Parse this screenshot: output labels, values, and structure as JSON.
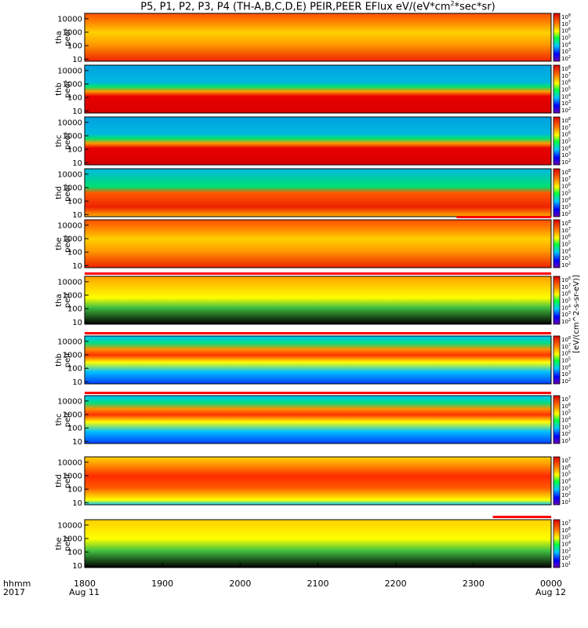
{
  "title": {
    "prefix": "P5, P1, P2, P3, P4 (TH-A,B,C,D,E) PEIR,PEER EFlux eV/(eV*cm",
    "sup": "2",
    "suffix": "*sec*sr)"
  },
  "time_axis": {
    "row1_label": "hhmm",
    "row2_label": "2017",
    "ticks": [
      "1800",
      "1900",
      "2000",
      "2100",
      "2200",
      "2300",
      "0000"
    ],
    "date_labels": [
      "Aug 11",
      "Aug 12"
    ]
  },
  "colorbar_label": "[eV/(cm^2-s-sr-eV)]",
  "colors": {
    "red_flag": "#ff0000",
    "fill_black": "#000000"
  },
  "chart_data": {
    "type": "heatmap",
    "title": "P5, P1, P2, P3, P4 (TH-A,B,C,D,E) PEIR,PEER EFlux eV/(eV*cm^2*sec*sr)",
    "x_range": [
      "2017-08-11 18:00",
      "2017-08-12 00:00"
    ],
    "y_scale": "log",
    "y_range_eV": [
      7,
      25000
    ],
    "y_ticks": [
      "10",
      "100",
      "1000",
      "10000"
    ],
    "colorbar_ticks": [
      "10^2",
      "10^3",
      "10^4",
      "10^5",
      "10^6",
      "10^7",
      "10^8"
    ],
    "panels": [
      {
        "id": "tha-peer",
        "ylabel": [
          "tha",
          "peer"
        ],
        "species": "electron",
        "probe": "tha",
        "red_flag": false,
        "cbar_ticks": [
          "10^8",
          "10^7",
          "10^6",
          "10^5",
          "10^4",
          "10^3",
          "10^2"
        ]
      },
      {
        "id": "thb-peer",
        "ylabel": [
          "thb",
          "peer"
        ],
        "species": "electron",
        "probe": "thb",
        "red_flag": false,
        "cbar_ticks": [
          "10^8",
          "10^7",
          "10^6",
          "10^5",
          "10^4",
          "10^3",
          "10^2"
        ]
      },
      {
        "id": "thc-peer",
        "ylabel": [
          "thc",
          "peer"
        ],
        "species": "electron",
        "probe": "thc",
        "red_flag": false,
        "cbar_ticks": [
          "10^8",
          "10^7",
          "10^6",
          "10^5",
          "10^4",
          "10^3",
          "10^2"
        ]
      },
      {
        "id": "thd-peer",
        "ylabel": [
          "thd",
          "peer"
        ],
        "species": "electron",
        "probe": "thd",
        "red_flag": false,
        "cbar_ticks": [
          "10^8",
          "10^7",
          "10^6",
          "10^5",
          "10^4",
          "10^3",
          "10^2"
        ]
      },
      {
        "id": "the-peer",
        "ylabel": [
          "the",
          "peer"
        ],
        "species": "electron",
        "probe": "the",
        "red_flag": true,
        "red_flag_range": [
          "2017-08-11 22:47",
          "2017-08-12 00:00"
        ],
        "cbar_ticks": [
          "10^8",
          "10^7",
          "10^6",
          "10^5",
          "10^4",
          "10^3",
          "10^2"
        ]
      },
      {
        "id": "tha-peir",
        "ylabel": [
          "tha",
          "peir"
        ],
        "species": "ion",
        "probe": "tha",
        "red_flag": true,
        "red_flag_range": [
          "2017-08-11 18:00",
          "2017-08-12 00:00"
        ],
        "cbar_ticks": [
          "10^8",
          "10^7",
          "10^6",
          "10^5",
          "10^4",
          "10^3",
          "10^2"
        ]
      },
      {
        "id": "thb-peir",
        "ylabel": [
          "thb",
          "peir"
        ],
        "species": "ion",
        "probe": "thb",
        "red_flag": true,
        "red_flag_range": [
          "2017-08-11 18:00",
          "2017-08-12 00:00"
        ],
        "cbar_ticks": [
          "10^8",
          "10^7",
          "10^6",
          "10^5",
          "10^4",
          "10^3",
          "10^2"
        ]
      },
      {
        "id": "thc-peir",
        "ylabel": [
          "thc",
          "peir"
        ],
        "species": "ion",
        "probe": "thc",
        "red_flag": true,
        "red_flag_range": [
          "2017-08-11 18:00",
          "2017-08-12 00:00"
        ],
        "cbar_ticks": [
          "10^7",
          "10^6",
          "10^5",
          "10^4",
          "10^3",
          "10^2",
          "10^1"
        ]
      },
      {
        "id": "thd-peir",
        "ylabel": [
          "thd",
          "peir"
        ],
        "species": "ion",
        "probe": "thd",
        "red_flag": false,
        "cbar_ticks": [
          "10^7",
          "10^6",
          "10^5",
          "10^4",
          "10^3",
          "10^2",
          "10^1"
        ]
      },
      {
        "id": "the-peir",
        "ylabel": [
          "the",
          "peir"
        ],
        "species": "ion",
        "probe": "the",
        "red_flag": true,
        "red_flag_range": [
          "2017-08-11 23:15",
          "2017-08-12 00:00"
        ],
        "cbar_ticks": [
          "10^7",
          "10^6",
          "10^5",
          "10^4",
          "10^3",
          "10^2",
          "10^1"
        ]
      }
    ]
  }
}
